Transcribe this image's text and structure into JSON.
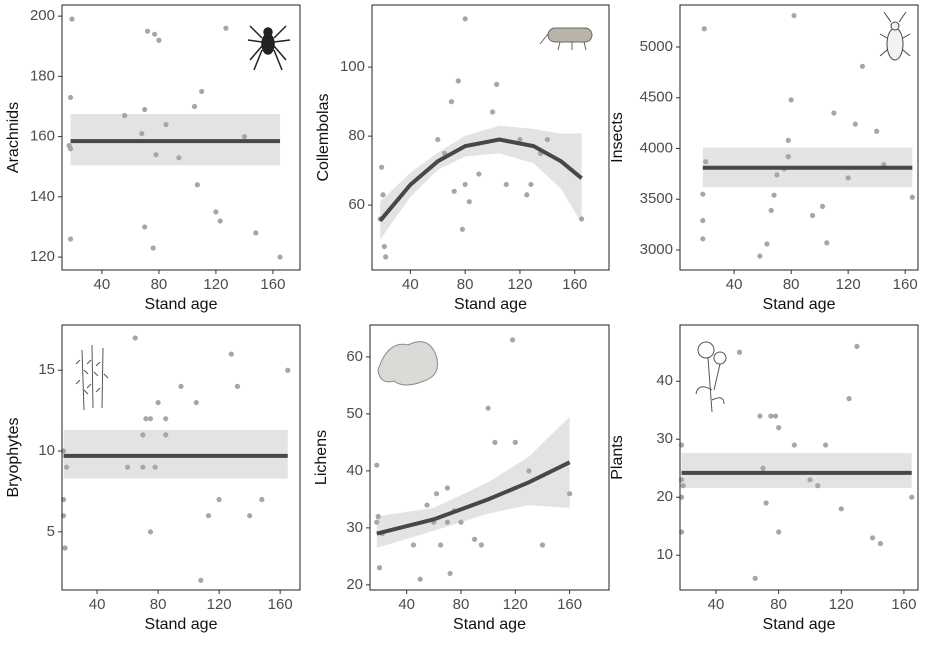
{
  "chart_data": [
    {
      "type": "scatter",
      "y_label": "Arachnids",
      "x_label": "Stand age",
      "x": [
        19,
        18,
        17,
        18,
        18,
        56,
        68,
        70,
        72,
        77,
        80,
        78,
        70,
        76,
        85,
        94,
        105,
        107,
        110,
        120,
        123,
        127,
        140,
        148,
        165
      ],
      "y": [
        199,
        173,
        157,
        156,
        126,
        167,
        161,
        169,
        195,
        194,
        192,
        154,
        130,
        123,
        164,
        153,
        170,
        144,
        175,
        135,
        132,
        196,
        160,
        128,
        120
      ],
      "point_color": "#a6a6a6",
      "xlim": [
        12,
        179
      ],
      "ylim": [
        115.7,
        203.7
      ],
      "xticks": [
        40,
        80,
        120,
        160
      ],
      "yticks": [
        120,
        140,
        160,
        180,
        200
      ],
      "fit": {
        "x": [
          18,
          165
        ],
        "values": [
          158.5,
          158.5
        ],
        "lower": [
          150.5,
          150.5
        ],
        "upper": [
          167.5,
          167.5
        ],
        "color": "#474747",
        "band_color": "#e3e3e3"
      }
    },
    {
      "type": "scatter",
      "y_label": "Collembolas",
      "x_label": "Stand age",
      "x": [
        18,
        19,
        20,
        21,
        22,
        60,
        65,
        70,
        72,
        75,
        78,
        80,
        80,
        83,
        90,
        100,
        103,
        110,
        120,
        125,
        128,
        135,
        140,
        165
      ],
      "y": [
        56,
        71,
        63,
        48,
        45,
        79,
        75,
        90,
        64,
        96,
        53,
        114,
        66,
        61,
        69,
        87,
        95,
        66,
        79,
        63,
        66,
        75,
        79,
        56
      ],
      "point_color": "#a6a6a6",
      "xlim": [
        12,
        185
      ],
      "ylim": [
        41.2,
        118
      ],
      "xticks": [
        40,
        80,
        120,
        160
      ],
      "yticks": [
        60,
        80,
        100
      ],
      "fit": {
        "x": [
          18,
          40,
          60,
          80,
          105,
          130,
          150,
          165
        ],
        "values": [
          55.5,
          65.9,
          72.7,
          77.1,
          79,
          77.1,
          72.7,
          67.8
        ],
        "lower": [
          50,
          62.4,
          70.2,
          74.1,
          75,
          72.1,
          64.7,
          54.8
        ],
        "upper": [
          61,
          69.4,
          75.2,
          80.1,
          83,
          82.1,
          80.7,
          80.8
        ],
        "color": "#474747",
        "band_color": "#e3e3e3"
      }
    },
    {
      "type": "scatter",
      "y_label": "Insects",
      "x_label": "Stand age",
      "x": [
        19,
        18,
        18,
        18,
        20,
        58,
        63,
        66,
        68,
        70,
        75,
        78,
        80,
        78,
        82,
        95,
        102,
        105,
        110,
        120,
        125,
        130,
        140,
        145,
        165
      ],
      "y": [
        5180,
        3550,
        3290,
        3110,
        3870,
        2940,
        3060,
        3390,
        3540,
        3740,
        3800,
        3920,
        4480,
        4080,
        5310,
        3340,
        3430,
        3070,
        4350,
        3710,
        4240,
        4810,
        4170,
        3840,
        3520
      ],
      "point_color": "#a6a6a6",
      "xlim": [
        2,
        169
      ],
      "ylim": [
        2803,
        5414
      ],
      "xticks": [
        40,
        80,
        120,
        160
      ],
      "yticks": [
        3000,
        3500,
        4000,
        4500,
        5000
      ],
      "fit": {
        "x": [
          18,
          165
        ],
        "values": [
          3810,
          3810
        ],
        "lower": [
          3620,
          3620
        ],
        "upper": [
          4010,
          4010
        ],
        "color": "#474747",
        "band_color": "#e3e3e3"
      }
    },
    {
      "type": "scatter",
      "y_label": "Bryophytes",
      "x_label": "Stand age",
      "x": [
        18,
        18,
        18,
        19,
        20,
        60,
        65,
        70,
        70,
        72,
        75,
        75,
        78,
        80,
        85,
        85,
        95,
        105,
        108,
        113,
        120,
        128,
        132,
        140,
        148,
        165
      ],
      "y": [
        10,
        7,
        6,
        4,
        9,
        9,
        17,
        11,
        9,
        12,
        5,
        12,
        9,
        13,
        12,
        11,
        14,
        13,
        2,
        6,
        7,
        16,
        14,
        6,
        7,
        15
      ],
      "point_color": "#a6a6a6",
      "xlim": [
        17,
        173
      ],
      "ylim": [
        1.4,
        17.8
      ],
      "xticks": [
        40,
        80,
        120,
        160
      ],
      "yticks": [
        5,
        10,
        15
      ],
      "fit": {
        "x": [
          18,
          165
        ],
        "values": [
          9.7,
          9.7
        ],
        "lower": [
          8.3,
          8.3
        ],
        "upper": [
          11.3,
          11.3
        ],
        "color": "#474747",
        "band_color": "#e3e3e3"
      }
    },
    {
      "type": "scatter",
      "y_label": "Lichens",
      "x_label": "Stand age",
      "x": [
        18,
        18,
        19,
        20,
        22,
        45,
        50,
        55,
        60,
        62,
        65,
        70,
        70,
        72,
        75,
        80,
        90,
        95,
        100,
        105,
        118,
        120,
        130,
        140,
        160
      ],
      "y": [
        31,
        41,
        32,
        23,
        29,
        27,
        21,
        34,
        31,
        36,
        27,
        37,
        31,
        22,
        33,
        31,
        28,
        27,
        51,
        45,
        63,
        45,
        40,
        27,
        36
      ],
      "point_color": "#a6a6a6",
      "xlim": [
        13,
        189
      ],
      "ylim": [
        19.1,
        65.6
      ],
      "xticks": [
        40,
        80,
        120,
        160
      ],
      "yticks": [
        20,
        30,
        40,
        50,
        60
      ],
      "fit": {
        "x": [
          18,
          60,
          100,
          130,
          160
        ],
        "values": [
          29,
          31.5,
          35,
          38,
          41.5
        ],
        "lower": [
          26.5,
          29.5,
          32.5,
          34,
          33.5
        ],
        "upper": [
          32,
          33.5,
          38,
          42.5,
          49.5
        ],
        "color": "#474747",
        "band_color": "#e3e3e3"
      }
    },
    {
      "type": "scatter",
      "y_label": "Plants",
      "x_label": "Stand age",
      "x": [
        18,
        18,
        19,
        18,
        18,
        55,
        65,
        68,
        70,
        72,
        75,
        78,
        80,
        80,
        90,
        100,
        105,
        110,
        120,
        125,
        130,
        140,
        145,
        165
      ],
      "y": [
        29,
        23,
        22,
        20,
        14,
        45,
        6,
        34,
        25,
        19,
        34,
        34,
        14,
        32,
        29,
        23,
        22,
        29,
        18,
        37,
        46,
        13,
        12,
        20
      ],
      "point_color": "#a6a6a6",
      "xlim": [
        17,
        169
      ],
      "ylim": [
        4,
        49.7
      ],
      "xticks": [
        40,
        80,
        120,
        160
      ],
      "yticks": [
        10,
        20,
        30,
        40
      ],
      "fit": {
        "x": [
          18,
          165
        ],
        "values": [
          24.2,
          24.2
        ],
        "lower": [
          21.6,
          21.6
        ],
        "upper": [
          27.6,
          27.6
        ],
        "color": "#474747",
        "band_color": "#e3e3e3"
      }
    }
  ]
}
